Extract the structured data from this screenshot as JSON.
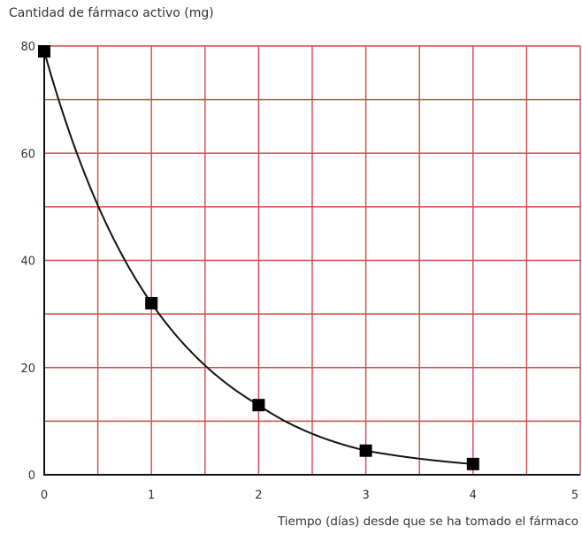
{
  "chart_data": {
    "type": "line",
    "title": "",
    "ylabel": "Cantidad de fármaco activo (mg)",
    "xlabel": "Tiempo (días) desde que se ha tomado el fármaco",
    "xlim": [
      0,
      5
    ],
    "ylim": [
      0,
      80
    ],
    "x_ticks": [
      "0",
      "1",
      "2",
      "3",
      "4",
      "5"
    ],
    "y_ticks": [
      "0",
      "20",
      "40",
      "60",
      "80"
    ],
    "grid": true,
    "grid_color": "#d04a4a",
    "series": [
      {
        "x": [
          0,
          1,
          2,
          3,
          4
        ],
        "y": [
          79,
          32,
          13,
          4.5,
          2
        ],
        "color": "#000000",
        "marker": "square"
      }
    ]
  }
}
